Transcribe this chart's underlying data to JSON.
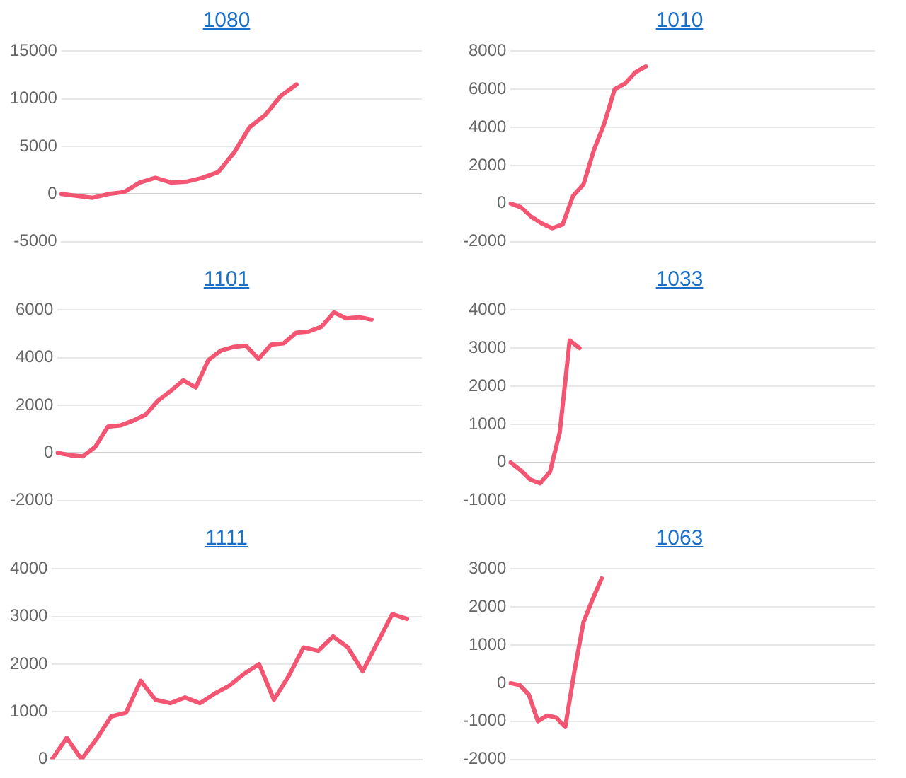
{
  "chart_data": [
    {
      "type": "line",
      "title": "1080",
      "grid": "y",
      "tick_labels": "y",
      "marker": "none",
      "ylim": [
        -5000,
        15000
      ],
      "yticks": [
        -5000,
        0,
        5000,
        10000,
        15000
      ],
      "categories": [
        null,
        null,
        null,
        null,
        null,
        null,
        null,
        null,
        null,
        null,
        null,
        null,
        null,
        null,
        null,
        null,
        null,
        null,
        null,
        null,
        null,
        null,
        null,
        null
      ],
      "series": [
        {
          "color": "#f25672",
          "values": [
            0,
            -200,
            -400,
            0,
            200,
            1200,
            1700,
            1200,
            1300,
            1700,
            2300,
            4300,
            7000,
            8300,
            10300,
            11500,
            null,
            null,
            null,
            null,
            null,
            null,
            null,
            null
          ]
        }
      ]
    },
    {
      "type": "line",
      "title": "1010",
      "grid": "y",
      "tick_labels": "y",
      "marker": "none",
      "ylim": [
        -2000,
        8000
      ],
      "yticks": [
        -2000,
        0,
        2000,
        4000,
        6000,
        8000
      ],
      "categories": [
        null,
        null,
        null,
        null,
        null,
        null,
        null,
        null,
        null,
        null,
        null,
        null,
        null,
        null,
        null,
        null,
        null,
        null,
        null,
        null,
        null,
        null,
        null,
        null,
        null,
        null,
        null,
        null,
        null,
        null,
        null,
        null,
        null,
        null,
        null,
        null
      ],
      "series": [
        {
          "color": "#f25672",
          "values": [
            0,
            -200,
            -700,
            -1050,
            -1300,
            -1100,
            400,
            1000,
            2800,
            4200,
            6000,
            6300,
            6900,
            7200,
            null,
            null,
            null,
            null,
            null,
            null,
            null,
            null,
            null,
            null,
            null,
            null,
            null,
            null,
            null,
            null,
            null,
            null,
            null,
            null,
            null,
            null
          ]
        }
      ]
    },
    {
      "type": "line",
      "title": "1101",
      "grid": "y",
      "tick_labels": "y",
      "marker": "none",
      "ylim": [
        -2000,
        6000
      ],
      "yticks": [
        -2000,
        0,
        2000,
        4000,
        6000
      ],
      "categories": [
        null,
        null,
        null,
        null,
        null,
        null,
        null,
        null,
        null,
        null,
        null,
        null,
        null,
        null,
        null,
        null,
        null,
        null,
        null,
        null,
        null,
        null,
        null,
        null,
        null,
        null,
        null,
        null,
        null,
        null
      ],
      "series": [
        {
          "color": "#f25672",
          "values": [
            0,
            -100,
            -150,
            250,
            1100,
            1150,
            1350,
            1600,
            2200,
            2600,
            3050,
            2750,
            3900,
            4300,
            4450,
            4500,
            3950,
            4550,
            4600,
            5050,
            5100,
            5300,
            5900,
            5650,
            5700,
            5600,
            null,
            null,
            null,
            null
          ]
        }
      ]
    },
    {
      "type": "line",
      "title": "1033",
      "grid": "y",
      "tick_labels": "y",
      "marker": "none",
      "ylim": [
        -1000,
        4000
      ],
      "yticks": [
        -1000,
        0,
        1000,
        2000,
        3000,
        4000
      ],
      "categories": [
        null,
        null,
        null,
        null,
        null,
        null,
        null,
        null,
        null,
        null,
        null,
        null,
        null,
        null,
        null,
        null,
        null,
        null,
        null,
        null,
        null,
        null,
        null,
        null,
        null,
        null,
        null,
        null,
        null,
        null,
        null,
        null,
        null,
        null,
        null,
        null,
        null,
        null
      ],
      "series": [
        {
          "color": "#f25672",
          "values": [
            0,
            -200,
            -450,
            -550,
            -250,
            800,
            3200,
            3000,
            null,
            null,
            null,
            null,
            null,
            null,
            null,
            null,
            null,
            null,
            null,
            null,
            null,
            null,
            null,
            null,
            null,
            null,
            null,
            null,
            null,
            null,
            null,
            null,
            null,
            null,
            null,
            null,
            null,
            null
          ]
        }
      ]
    },
    {
      "type": "line",
      "title": "1111",
      "grid": "y",
      "tick_labels": "y",
      "marker": "none",
      "ylim": [
        0,
        4000
      ],
      "yticks": [
        0,
        1000,
        2000,
        3000,
        4000
      ],
      "categories": [
        null,
        null,
        null,
        null,
        null,
        null,
        null,
        null,
        null,
        null,
        null,
        null,
        null,
        null,
        null,
        null,
        null,
        null,
        null,
        null,
        null,
        null,
        null,
        null,
        null,
        null
      ],
      "series": [
        {
          "color": "#f25672",
          "values": [
            0,
            450,
            0,
            420,
            900,
            980,
            1650,
            1250,
            1180,
            1300,
            1180,
            1380,
            1550,
            1800,
            2000,
            1250,
            1750,
            2350,
            2280,
            2580,
            2350,
            1850,
            2450,
            3050,
            2950,
            null
          ]
        }
      ]
    },
    {
      "type": "line",
      "title": "1063",
      "grid": "y",
      "tick_labels": "y",
      "marker": "none",
      "ylim": [
        -2000,
        3000
      ],
      "yticks": [
        -2000,
        -1000,
        0,
        1000,
        2000,
        3000
      ],
      "categories": [
        null,
        null,
        null,
        null,
        null,
        null,
        null,
        null,
        null,
        null,
        null,
        null,
        null,
        null,
        null,
        null,
        null,
        null,
        null,
        null,
        null,
        null,
        null,
        null,
        null,
        null,
        null,
        null,
        null,
        null,
        null,
        null,
        null,
        null,
        null,
        null,
        null,
        null,
        null,
        null,
        null
      ],
      "series": [
        {
          "color": "#f25672",
          "values": [
            0,
            -50,
            -300,
            -1000,
            -850,
            -900,
            -1150,
            300,
            1600,
            2200,
            2750,
            null,
            null,
            null,
            null,
            null,
            null,
            null,
            null,
            null,
            null,
            null,
            null,
            null,
            null,
            null,
            null,
            null,
            null,
            null,
            null,
            null,
            null,
            null,
            null,
            null,
            null,
            null,
            null,
            null,
            null
          ]
        }
      ]
    }
  ]
}
